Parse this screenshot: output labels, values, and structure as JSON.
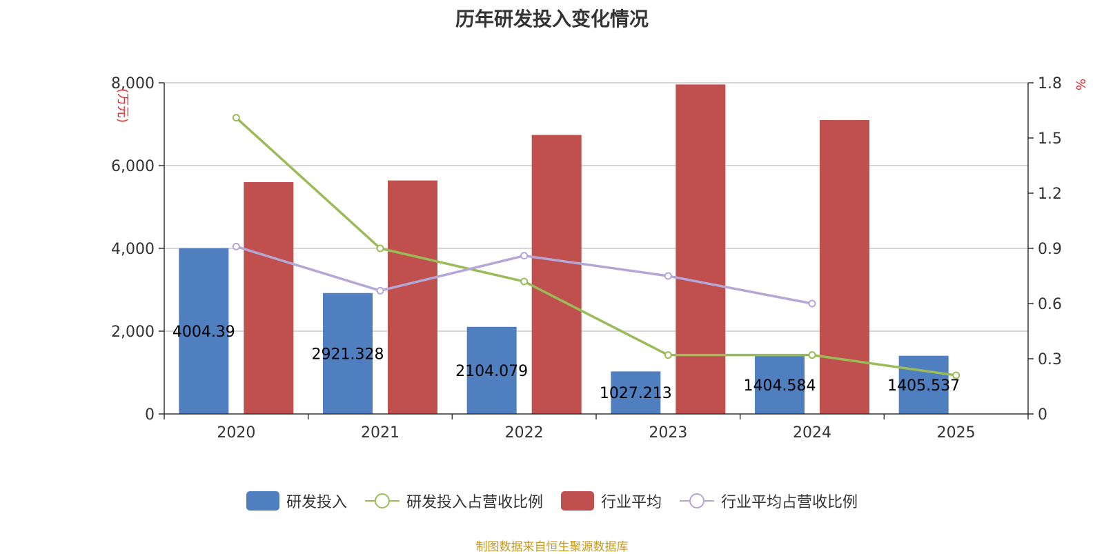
{
  "chart_data": {
    "type": "bar",
    "title": "历年研发投入变化情况",
    "categories": [
      "2020",
      "2021",
      "2022",
      "2023",
      "2024",
      "2025"
    ],
    "y_left": {
      "unit": "万元",
      "ylim": [
        0,
        8000
      ],
      "ticks": [
        "0",
        "2,000",
        "4,000",
        "6,000",
        "8,000"
      ],
      "tick_values": [
        0,
        2000,
        4000,
        6000,
        8000
      ]
    },
    "y_right": {
      "unit": "%",
      "ylim": [
        0,
        1.8
      ],
      "ticks": [
        "0",
        "0.3",
        "0.6",
        "0.9",
        "1.2",
        "1.5",
        "1.8"
      ],
      "tick_values": [
        0,
        0.3,
        0.6,
        0.9,
        1.2,
        1.5,
        1.8
      ]
    },
    "series": [
      {
        "name": "研发投入",
        "kind": "bar",
        "axis": "left",
        "color": "#4f7fbf",
        "values": [
          4004.39,
          2921.328,
          2104.079,
          1027.213,
          1404.584,
          1405.537
        ],
        "labels": [
          "4004.39",
          "2921.328",
          "2104.079",
          "1027.213",
          "1404.584",
          "1405.537"
        ]
      },
      {
        "name": "研发投入占营收比例",
        "kind": "line",
        "axis": "right",
        "color": "#9bbb59",
        "values": [
          1.61,
          0.9,
          0.72,
          0.32,
          0.32,
          0.21
        ]
      },
      {
        "name": "行业平均",
        "kind": "bar",
        "axis": "left",
        "color": "#c0504d",
        "values": [
          5600,
          5640,
          6740,
          7960,
          7100,
          null
        ]
      },
      {
        "name": "行业平均占营收比例",
        "kind": "line",
        "axis": "right",
        "color": "#b4a7d6",
        "values": [
          0.91,
          0.67,
          0.86,
          0.75,
          0.6,
          null
        ]
      }
    ],
    "grid": true,
    "legend_position": "bottom"
  },
  "source_note": "制图数据来自恒生聚源数据库"
}
